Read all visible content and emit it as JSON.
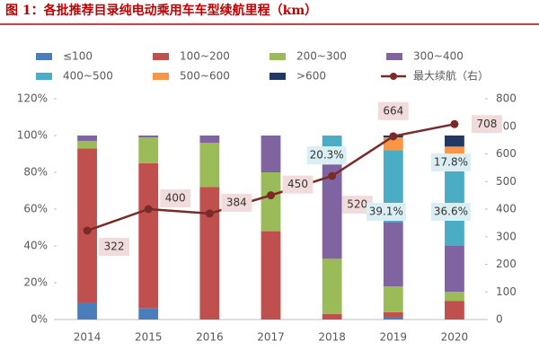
{
  "chart_data": {
    "type": "bar",
    "title": "图 1：各批推荐目录纯电动乘用车车型续航里程（km）",
    "categories": [
      "2014",
      "2015",
      "2016",
      "2017",
      "2018",
      "2019",
      "2020"
    ],
    "series": [
      {
        "name": "≤100",
        "color": "#4a7ebb",
        "values": [
          9,
          6,
          0,
          0,
          0,
          1,
          0
        ]
      },
      {
        "name": "100~200",
        "color": "#c0504d",
        "values": [
          84,
          79,
          72,
          48,
          3,
          3,
          10
        ]
      },
      {
        "name": "200~300",
        "color": "#9bbb59",
        "values": [
          4,
          14,
          24,
          32,
          30,
          14,
          5
        ]
      },
      {
        "name": "300~400",
        "color": "#8064a2",
        "values": [
          3,
          1,
          4,
          20,
          51,
          34.9,
          25
        ]
      },
      {
        "name": "400~500",
        "color": "#4bacc6",
        "values": [
          0,
          0,
          0,
          0,
          16,
          39.1,
          50
        ]
      },
      {
        "name": "500~600",
        "color": "#f79646",
        "values": [
          0,
          0,
          0,
          0,
          0,
          7,
          4
        ]
      },
      {
        "name": ">600",
        "color": "#1f3864",
        "values": [
          0,
          0,
          0,
          0,
          0,
          1,
          6
        ]
      },
      {
        "name": "最大续航（右）",
        "type": "line",
        "axis": "y2",
        "color": "#7b2a2a",
        "values": [
          322,
          400,
          384,
          450,
          520,
          664,
          708
        ]
      }
    ],
    "annotations": [
      "20.3%",
      "39.1%",
      "17.8%",
      "36.6%"
    ],
    "ylim": [
      0,
      120
    ],
    "yticks": [
      {
        "value": 0,
        "label": "0%"
      },
      {
        "value": 20,
        "label": "20%"
      },
      {
        "value": 40,
        "label": "40%"
      },
      {
        "value": 60,
        "label": "60%"
      },
      {
        "value": 80,
        "label": "80%"
      },
      {
        "value": 100,
        "label": "100%"
      },
      {
        "value": 120,
        "label": "120%"
      }
    ],
    "y2lim": [
      0,
      800
    ],
    "y2ticks": [
      0,
      100,
      200,
      300,
      400,
      500,
      600,
      700,
      800
    ]
  }
}
